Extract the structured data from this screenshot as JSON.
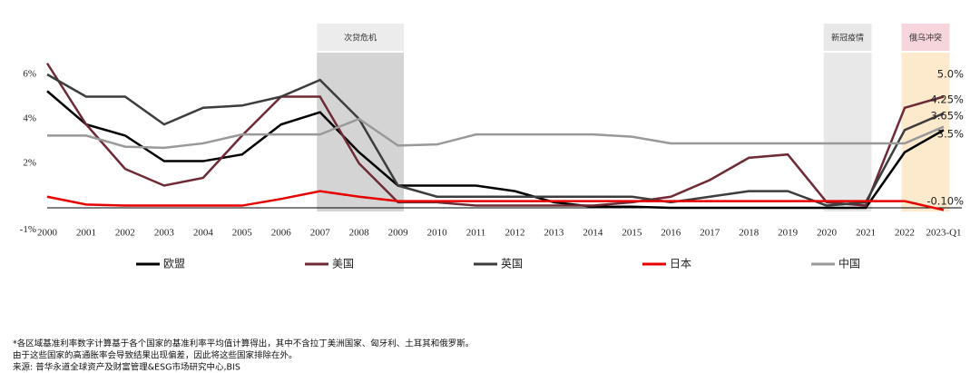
{
  "chart_data": {
    "type": "line",
    "categories": [
      "2000",
      "2001",
      "2002",
      "2003",
      "2004",
      "2005",
      "2006",
      "2007",
      "2008",
      "2009",
      "2010",
      "2011",
      "2012",
      "2013",
      "2014",
      "2015",
      "2016",
      "2017",
      "2018",
      "2019",
      "2020",
      "2021",
      "2022",
      "2023-Q1"
    ],
    "ylim": [
      -1,
      7
    ],
    "yticks": [
      {
        "value": -1,
        "label": "-1%"
      },
      {
        "value": 2,
        "label": "2%"
      },
      {
        "value": 4,
        "label": "4%"
      },
      {
        "value": 6,
        "label": "6%"
      }
    ],
    "shaded": [
      {
        "label": "次贷危机",
        "from": "2007",
        "to": "2009",
        "color": "#d4d4d4",
        "header_color": "#ececec"
      },
      {
        "label": "新冠疫情",
        "from": "2020",
        "to": "2021",
        "color": "#e8e8e8",
        "header_color": "#e8e8e8"
      },
      {
        "label": "俄乌冲突",
        "from": "2022",
        "to": "2023-Q1",
        "color": "#fde9cc",
        "header_color": "#f7d5dc"
      }
    ],
    "series": [
      {
        "name": "欧盟",
        "color": "#000000",
        "end_label": "3.5%",
        "values": [
          5.25,
          3.75,
          3.25,
          2.1,
          2.1,
          2.4,
          3.75,
          4.3,
          2.5,
          1.0,
          1.0,
          1.0,
          0.75,
          0.25,
          0.05,
          0.05,
          0,
          0,
          0,
          0,
          0,
          0,
          2.5,
          3.5
        ]
      },
      {
        "name": "美国",
        "color": "#6e2a35",
        "end_label": "5.0%",
        "values": [
          6.5,
          3.75,
          1.75,
          1.0,
          1.35,
          3.25,
          5.0,
          5.0,
          2.0,
          0.25,
          0.25,
          0.1,
          0.1,
          0.1,
          0.1,
          0.25,
          0.5,
          1.25,
          2.25,
          2.4,
          0.25,
          0.1,
          4.5,
          5.0
        ]
      },
      {
        "name": "英国",
        "color": "#3d3d3d",
        "end_label": "4.25%",
        "values": [
          6.0,
          5.0,
          5.0,
          3.75,
          4.5,
          4.6,
          5.0,
          5.75,
          4.0,
          1.0,
          0.5,
          0.5,
          0.5,
          0.5,
          0.5,
          0.5,
          0.25,
          0.5,
          0.75,
          0.75,
          0.1,
          0.25,
          3.5,
          4.25
        ]
      },
      {
        "name": "日本",
        "color": "#e60000",
        "end_label": "-0.10%",
        "values": [
          0.5,
          0.15,
          0.1,
          0.1,
          0.1,
          0.1,
          0.4,
          0.75,
          0.5,
          0.3,
          0.3,
          0.3,
          0.3,
          0.3,
          0.3,
          0.3,
          0.3,
          0.3,
          0.3,
          0.3,
          0.3,
          0.3,
          0.3,
          -0.1
        ]
      },
      {
        "name": "中国",
        "color": "#999999",
        "end_label": "3.65%",
        "values": [
          3.25,
          3.25,
          2.75,
          2.7,
          2.9,
          3.3,
          3.3,
          3.3,
          4.0,
          2.8,
          2.85,
          3.3,
          3.3,
          3.3,
          3.3,
          3.2,
          2.9,
          2.9,
          2.9,
          2.9,
          2.9,
          2.9,
          2.9,
          3.65
        ]
      }
    ]
  },
  "notes": [
    "*各区域基准利率数字计算基于各个国家的基准利率平均值计算得出，其中不含拉丁美洲国家、匈牙利、土耳其和俄罗斯。",
    "由于这些国家的高通胀率会导致结果出现偏差，因此将这些国家排除在外。",
    "来源: 普华永道全球资产及财富管理&ESG市场研究中心,BIS"
  ]
}
